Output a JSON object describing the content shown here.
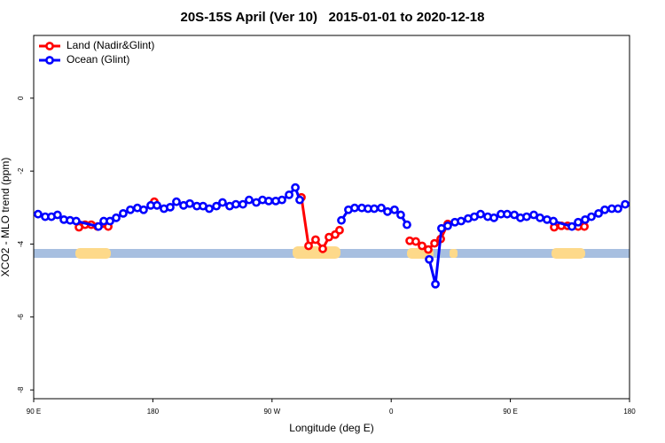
{
  "chart_data": {
    "type": "line",
    "title": "20S-15S April (Ver 10)   2015-01-01 to 2020-12-18",
    "xlabel": "Longitude (deg E)",
    "ylabel": "XCO2 - MLO trend (ppm)",
    "xlim": [
      90,
      540
    ],
    "ylim": [
      -8.24,
      1.72
    ],
    "xticks": [
      {
        "value": 90,
        "label": "90 E"
      },
      {
        "value": 180,
        "label": "180"
      },
      {
        "value": 270,
        "label": "90 W"
      },
      {
        "value": 360,
        "label": "0"
      },
      {
        "value": 450,
        "label": "90 E"
      },
      {
        "value": 540,
        "label": "180"
      }
    ],
    "yticks": [
      0,
      -2,
      -4,
      -6,
      -8
    ],
    "legend": "top-left",
    "series": [
      {
        "name": "Land (Nadir&Glint)",
        "color": "#ff0000",
        "x": [
          124.2,
          128.8,
          133.5,
          138.2,
          146.3,
          null,
          181.1,
          null,
          292.2,
          297.6,
          302.9,
          308.3,
          313,
          317.7,
          321,
          null,
          374,
          378.6,
          383.3,
          388,
          392.7,
          397.4,
          402.7,
          null,
          483.1,
          488.5,
          493.2,
          501.2,
          505.9
        ],
        "values": [
          -3.54,
          -3.47,
          -3.47,
          -3.52,
          -3.52,
          null,
          -2.84,
          null,
          -2.72,
          -4.05,
          -3.88,
          -4.13,
          -3.81,
          -3.74,
          -3.62,
          null,
          -3.91,
          -3.93,
          -4.05,
          -4.15,
          -3.98,
          -3.86,
          -3.45,
          null,
          -3.54,
          -3.5,
          -3.5,
          -3.52,
          -3.52
        ]
      },
      {
        "name": "Ocean (Glint)",
        "color": "#0000ff",
        "x": [
          93.3,
          98.7,
          103.4,
          108,
          112.8,
          117.5,
          122.1,
          138.9,
          142.9,
          147.6,
          152.3,
          157.6,
          163,
          168.3,
          173,
          178.4,
          183.1,
          188.4,
          193.1,
          197.8,
          203.2,
          207.9,
          213.2,
          217.9,
          222.6,
          228,
          232.6,
          238,
          242.7,
          248,
          252.7,
          258.1,
          262.8,
          267.5,
          272.8,
          277.5,
          282.9,
          287.6,
          290.9,
          null,
          322.4,
          327.7,
          332.4,
          337.8,
          342.5,
          347.2,
          352.5,
          357.2,
          362.5,
          367.2,
          371.9,
          null,
          388.7,
          393.4,
          398,
          402.7,
          408.1,
          412.8,
          418.1,
          422.8,
          427.5,
          432.9,
          437.6,
          442.9,
          447.6,
          453,
          457.6,
          462.3,
          467.7,
          472.4,
          477.7,
          482.5,
          496.5,
          501.2,
          506.5,
          511.2,
          516.6,
          521.3,
          526.6,
          531.3,
          536.7
        ],
        "values": [
          -3.18,
          -3.25,
          -3.25,
          -3.2,
          -3.33,
          -3.35,
          -3.37,
          -3.52,
          -3.37,
          -3.37,
          -3.28,
          -3.16,
          -3.06,
          -3.01,
          -3.06,
          -2.94,
          -2.94,
          -3.03,
          -2.99,
          -2.84,
          -2.94,
          -2.89,
          -2.96,
          -2.96,
          -3.03,
          -2.96,
          -2.86,
          -2.96,
          -2.91,
          -2.91,
          -2.79,
          -2.86,
          -2.79,
          -2.82,
          -2.82,
          -2.79,
          -2.65,
          -2.45,
          -2.79,
          null,
          -3.35,
          -3.06,
          -3.01,
          -3.01,
          -3.03,
          -3.03,
          -3.01,
          -3.11,
          -3.06,
          -3.2,
          -3.47,
          null,
          -4.42,
          -5.1,
          -3.57,
          -3.5,
          -3.4,
          -3.37,
          -3.3,
          -3.25,
          -3.18,
          -3.25,
          -3.28,
          -3.18,
          -3.18,
          -3.2,
          -3.28,
          -3.25,
          -3.2,
          -3.28,
          -3.33,
          -3.37,
          -3.52,
          -3.4,
          -3.33,
          -3.25,
          -3.16,
          -3.06,
          -3.03,
          -3.03,
          -2.91
        ]
      }
    ]
  }
}
